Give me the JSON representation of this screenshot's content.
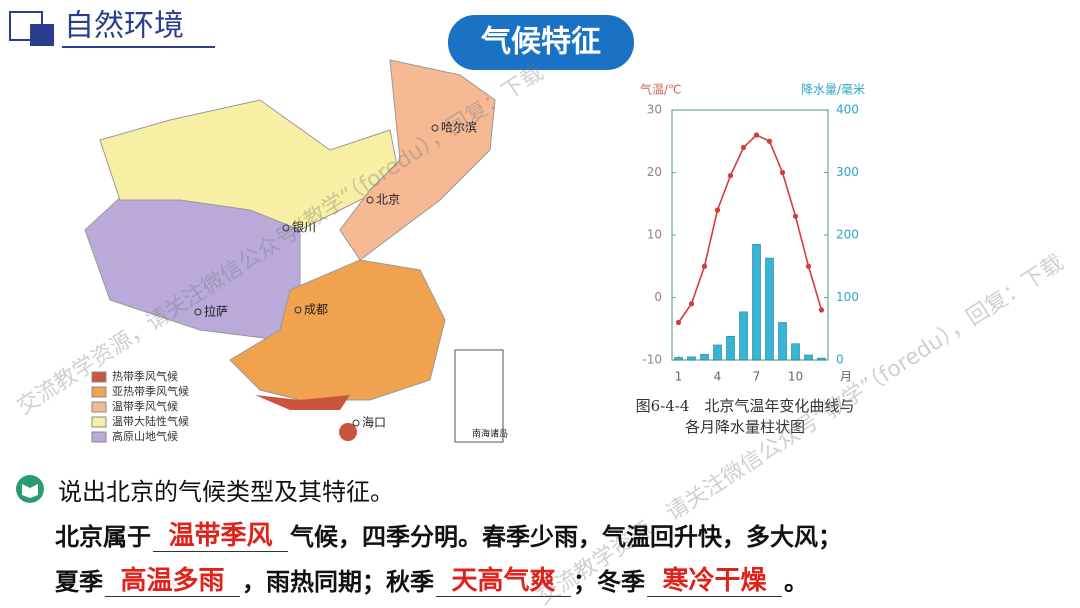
{
  "header": {
    "title": "自然环境",
    "badge": "气候特征"
  },
  "map": {
    "legend": [
      {
        "label": "热带季风气候",
        "color": "#c9553e"
      },
      {
        "label": "亚热带季风气候",
        "color": "#f0a24e"
      },
      {
        "label": "温带季风气候",
        "color": "#f5b994"
      },
      {
        "label": "温带大陆性气候",
        "color": "#f7f0a4"
      },
      {
        "label": "高原山地气候",
        "color": "#b9aad9"
      }
    ],
    "cities": [
      "哈尔滨",
      "北京",
      "银川",
      "拉萨",
      "成都",
      "海口",
      "南海诸岛"
    ]
  },
  "chart_data": {
    "type": "combo",
    "y_label": "气温/℃",
    "y2_label": "降水量/毫米",
    "x_unit": "月",
    "x": [
      1,
      2,
      3,
      4,
      5,
      6,
      7,
      8,
      9,
      10,
      11,
      12
    ],
    "xlim": [
      0.5,
      12.5
    ],
    "xticks": [
      1,
      4,
      7,
      10
    ],
    "ylim": [
      -10,
      30
    ],
    "yticks": [
      -10,
      0,
      10,
      20,
      30
    ],
    "y2lim": [
      0,
      400
    ],
    "y2ticks": [
      0,
      100,
      200,
      300,
      400
    ],
    "series": [
      {
        "type": "bar",
        "axis": "y2",
        "color": "#38b4d4",
        "values": [
          4,
          5,
          9,
          24,
          38,
          77,
          185,
          163,
          60,
          26,
          8,
          3
        ]
      },
      {
        "type": "line",
        "axis": "y",
        "color": "#d43c3c",
        "values": [
          -4,
          -1,
          5,
          14,
          19.5,
          24,
          26,
          25,
          20,
          13,
          5,
          -2
        ]
      }
    ],
    "caption": [
      "图6-4-4　北京气温年变化曲线与",
      "各月降水量柱状图"
    ]
  },
  "question": "说出北京的气候类型及其特征。",
  "answer": [
    [
      "北京属于",
      "温带季风",
      "气候，四季分明。春季少雨，气温回升快，多大风；"
    ],
    [
      "夏季",
      "高温多雨",
      "，雨热同期；秋季",
      "天高气爽",
      "；冬季",
      "寒冷干燥",
      "。"
    ]
  ],
  "watermarks": [
    "交流教学资源，请关注微信公众号“教学”（foredu），回复：下载",
    "交流教学资源，请关注微信公众号“教学”（foredu），回复：下载"
  ]
}
